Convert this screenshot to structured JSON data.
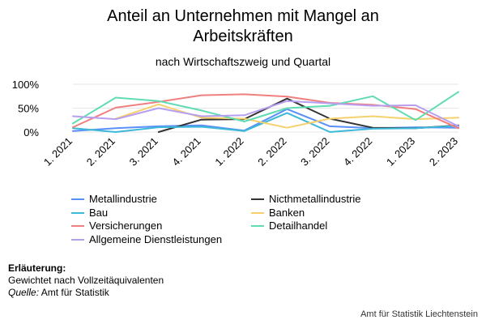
{
  "chart_data": {
    "type": "line",
    "title_line1": "Anteil an Unternehmen mit Mangel an",
    "title_line2": "Arbeitskräften",
    "subtitle": "nach Wirtschaftszweig und Quartal",
    "categories": [
      "1. 2021",
      "2. 2021",
      "3. 2021",
      "4. 2021",
      "1. 2022",
      "2. 2022",
      "3. 2022",
      "4. 2022",
      "1. 2023",
      "2. 2023"
    ],
    "y_ticks": [
      "0%",
      "50%",
      "100%"
    ],
    "ylim": [
      0,
      100
    ],
    "grid": true,
    "legend_position": "bottom",
    "series": [
      {
        "name": "Metallindustrie",
        "color": "#5b8ff9",
        "values": [
          2,
          8,
          12,
          14,
          3,
          48,
          12,
          8,
          10,
          9
        ]
      },
      {
        "name": "Nicthmetallindustrie",
        "color": "#333333",
        "values": [
          null,
          null,
          0,
          26,
          27,
          70,
          28,
          9,
          8,
          14
        ]
      },
      {
        "name": "Bau",
        "color": "#3cb8d8",
        "values": [
          8,
          0,
          10,
          11,
          2,
          40,
          0,
          7,
          8,
          13
        ]
      },
      {
        "name": "Banken",
        "color": "#f6d16b",
        "values": [
          null,
          28,
          58,
          30,
          28,
          9,
          28,
          33,
          27,
          30
        ]
      },
      {
        "name": "Versicherungen",
        "color": "#f08080",
        "values": [
          10,
          51,
          63,
          77,
          79,
          74,
          61,
          57,
          48,
          8
        ]
      },
      {
        "name": "Detailhandel",
        "color": "#5fdcb3",
        "values": [
          18,
          72,
          65,
          45,
          22,
          50,
          55,
          75,
          25,
          84
        ]
      },
      {
        "name": "Allgemeine Dienstleistungen",
        "color": "#b79ef0",
        "values": [
          33,
          27,
          50,
          33,
          35,
          65,
          60,
          55,
          56,
          12
        ]
      }
    ]
  },
  "notes": {
    "heading": "Erläuterung:",
    "line1": "Gewichtet nach Vollzeitäquivalenten",
    "source_label": "Quelle:",
    "source_text": " Amt für Statistik"
  },
  "credit": "Amt für Statistik Liechtenstein"
}
